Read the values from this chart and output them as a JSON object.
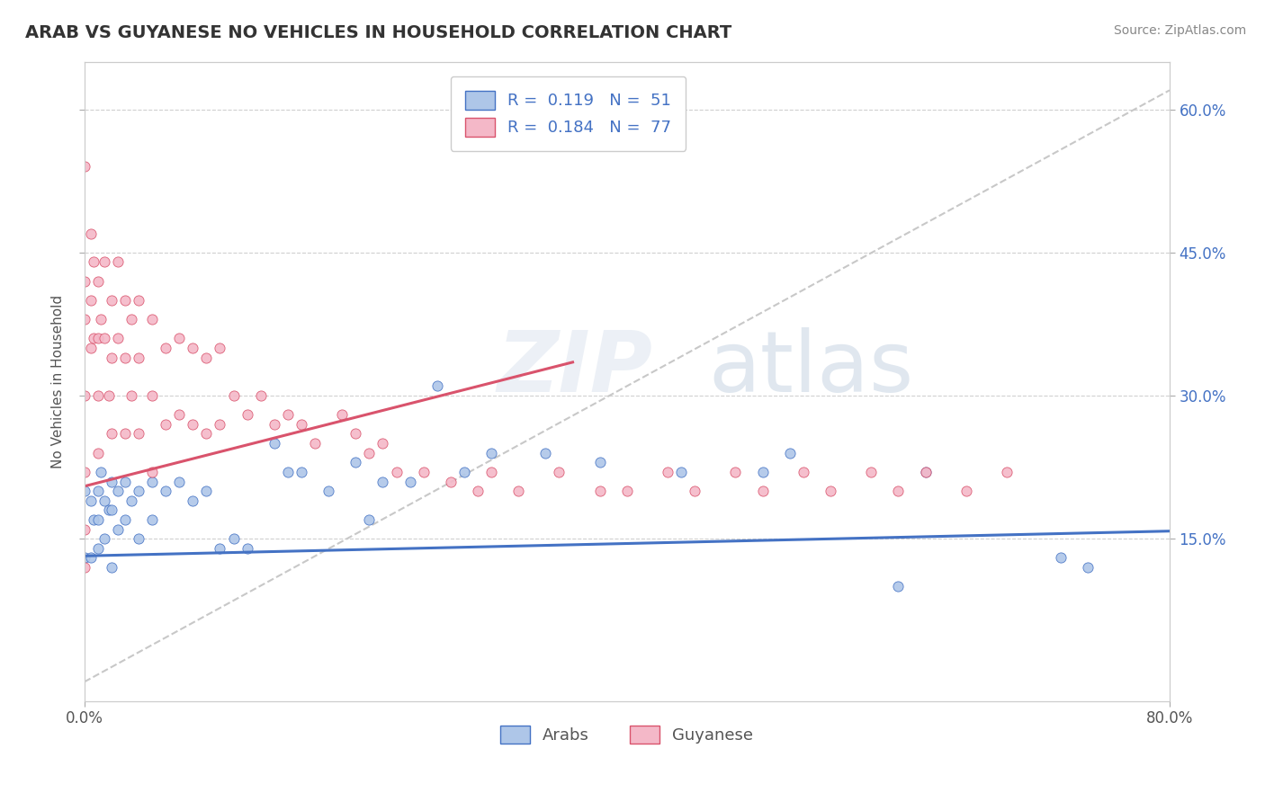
{
  "title": "ARAB VS GUYANESE NO VEHICLES IN HOUSEHOLD CORRELATION CHART",
  "source": "Source: ZipAtlas.com",
  "ylabel": "No Vehicles in Household",
  "xlim": [
    0.0,
    0.8
  ],
  "ylim": [
    -0.02,
    0.65
  ],
  "yticks": [
    0.15,
    0.3,
    0.45,
    0.6
  ],
  "ytick_labels": [
    "15.0%",
    "30.0%",
    "45.0%",
    "60.0%"
  ],
  "arab_R": 0.119,
  "arab_N": 51,
  "guyanese_R": 0.184,
  "guyanese_N": 77,
  "arab_color": "#aec6e8",
  "arab_line_color": "#4472c4",
  "guyanese_color": "#f4b8c8",
  "guyanese_line_color": "#d9536c",
  "grid_color": "#d0d0d0",
  "trend_line_color": "#c8c8c8",
  "background_color": "#ffffff",
  "ytick_color": "#4472c4",
  "arab_scatter_x": [
    0.0,
    0.0,
    0.005,
    0.005,
    0.007,
    0.01,
    0.01,
    0.01,
    0.012,
    0.015,
    0.015,
    0.018,
    0.02,
    0.02,
    0.02,
    0.025,
    0.025,
    0.03,
    0.03,
    0.035,
    0.04,
    0.04,
    0.05,
    0.05,
    0.06,
    0.07,
    0.08,
    0.09,
    0.1,
    0.11,
    0.12,
    0.14,
    0.15,
    0.16,
    0.18,
    0.2,
    0.21,
    0.22,
    0.24,
    0.26,
    0.28,
    0.3,
    0.34,
    0.38,
    0.44,
    0.5,
    0.52,
    0.6,
    0.62,
    0.72,
    0.74
  ],
  "arab_scatter_y": [
    0.13,
    0.2,
    0.19,
    0.13,
    0.17,
    0.2,
    0.17,
    0.14,
    0.22,
    0.19,
    0.15,
    0.18,
    0.21,
    0.18,
    0.12,
    0.2,
    0.16,
    0.21,
    0.17,
    0.19,
    0.2,
    0.15,
    0.21,
    0.17,
    0.2,
    0.21,
    0.19,
    0.2,
    0.14,
    0.15,
    0.14,
    0.25,
    0.22,
    0.22,
    0.2,
    0.23,
    0.17,
    0.21,
    0.21,
    0.31,
    0.22,
    0.24,
    0.24,
    0.23,
    0.22,
    0.22,
    0.24,
    0.1,
    0.22,
    0.13,
    0.12
  ],
  "guyanese_scatter_x": [
    0.0,
    0.0,
    0.0,
    0.0,
    0.0,
    0.0,
    0.0,
    0.005,
    0.005,
    0.005,
    0.007,
    0.007,
    0.01,
    0.01,
    0.01,
    0.01,
    0.012,
    0.015,
    0.015,
    0.018,
    0.02,
    0.02,
    0.02,
    0.025,
    0.025,
    0.03,
    0.03,
    0.03,
    0.035,
    0.035,
    0.04,
    0.04,
    0.04,
    0.05,
    0.05,
    0.05,
    0.06,
    0.06,
    0.07,
    0.07,
    0.08,
    0.08,
    0.09,
    0.09,
    0.1,
    0.1,
    0.11,
    0.12,
    0.13,
    0.14,
    0.15,
    0.16,
    0.17,
    0.19,
    0.2,
    0.21,
    0.22,
    0.23,
    0.25,
    0.27,
    0.29,
    0.3,
    0.32,
    0.35,
    0.38,
    0.4,
    0.43,
    0.45,
    0.48,
    0.5,
    0.53,
    0.55,
    0.58,
    0.6,
    0.62,
    0.65,
    0.68
  ],
  "guyanese_scatter_y": [
    0.54,
    0.42,
    0.38,
    0.3,
    0.22,
    0.16,
    0.12,
    0.47,
    0.4,
    0.35,
    0.44,
    0.36,
    0.42,
    0.36,
    0.3,
    0.24,
    0.38,
    0.44,
    0.36,
    0.3,
    0.4,
    0.34,
    0.26,
    0.44,
    0.36,
    0.4,
    0.34,
    0.26,
    0.38,
    0.3,
    0.4,
    0.34,
    0.26,
    0.38,
    0.3,
    0.22,
    0.35,
    0.27,
    0.36,
    0.28,
    0.35,
    0.27,
    0.34,
    0.26,
    0.35,
    0.27,
    0.3,
    0.28,
    0.3,
    0.27,
    0.28,
    0.27,
    0.25,
    0.28,
    0.26,
    0.24,
    0.25,
    0.22,
    0.22,
    0.21,
    0.2,
    0.22,
    0.2,
    0.22,
    0.2,
    0.2,
    0.22,
    0.2,
    0.22,
    0.2,
    0.22,
    0.2,
    0.22,
    0.2,
    0.22,
    0.2,
    0.22
  ],
  "arab_trend_x": [
    0.0,
    0.8
  ],
  "arab_trend_y": [
    0.132,
    0.158
  ],
  "guyanese_trend_x": [
    0.0,
    0.36
  ],
  "guyanese_trend_y": [
    0.205,
    0.335
  ]
}
